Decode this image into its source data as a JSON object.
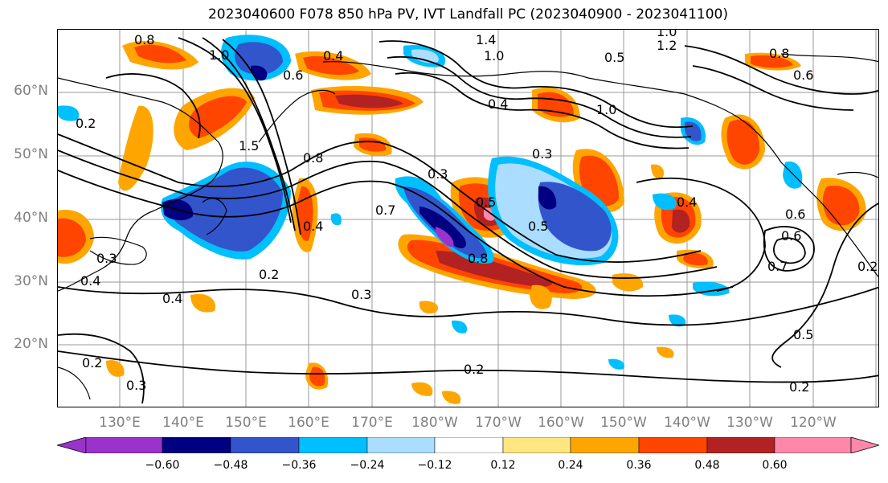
{
  "title": "2023040600 F078 850 hPa PV, IVT Landfall PC (2023040900 - 2023041100)",
  "lat_labels": [
    "60°N",
    "50°N",
    "40°N",
    "30°N",
    "20°N"
  ],
  "lon_labels": [
    "130°E",
    "140°E",
    "150°E",
    "160°E",
    "170°E",
    "180°W",
    "170°W",
    "160°W",
    "150°W",
    "140°W",
    "130°W",
    "120°W"
  ],
  "colorbar": {
    "colors": [
      "#9933cc",
      "#000080",
      "#3355cc",
      "#00bfff",
      "#aaddff",
      "#ffffff",
      "#ffe680",
      "#ffa500",
      "#ff4500",
      "#b22222",
      "#ff88aa"
    ],
    "tick_labels": [
      "−0.60",
      "−0.48",
      "−0.36",
      "−0.24",
      "−0.12",
      "0.12",
      "0.24",
      "0.36",
      "0.48",
      "0.60"
    ]
  },
  "contour_labels": [
    "0.8",
    "1.0",
    "0.6",
    "0.4",
    "1.4",
    "1.0",
    "1.2",
    "1.0",
    "0.5",
    "0.8",
    "0.6",
    "0.4",
    "1.0",
    "0.3",
    "0.2",
    "1.5",
    "0.8",
    "0.5",
    "0.7",
    "0.4",
    "0.3",
    "0.8",
    "0.2",
    "0.3",
    "0.4",
    "0.4",
    "0.5",
    "0.6",
    "0.7",
    "0.6",
    "0.2",
    "0.5",
    "0.2",
    "0.2",
    "0.3",
    "0.3",
    "0.2",
    "0.4"
  ]
}
